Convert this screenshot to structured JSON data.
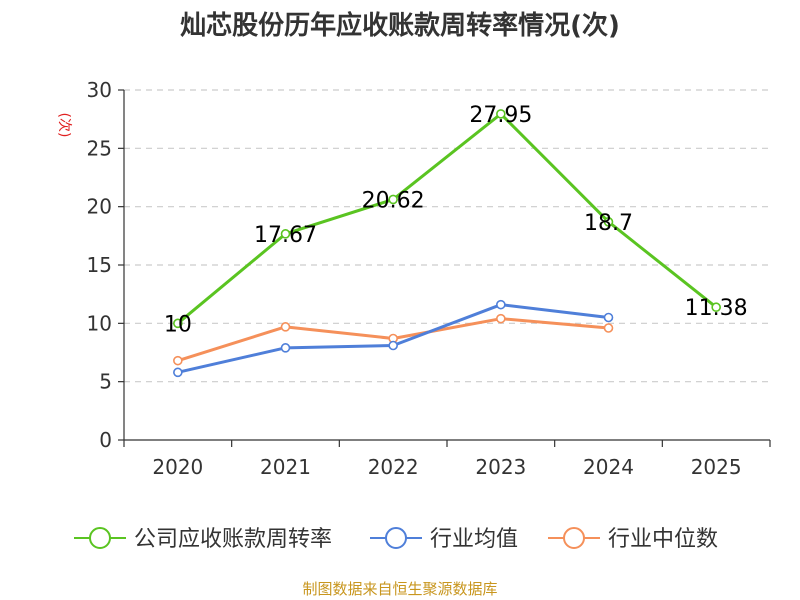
{
  "chart_data": {
    "type": "line",
    "title": "灿芯股份历年应收账款周转率情况(次)",
    "ylabel": "(次)",
    "xlabel": "",
    "categories": [
      "2020",
      "2021",
      "2022",
      "2023",
      "2024",
      "2025"
    ],
    "ylim": [
      0,
      30
    ],
    "yticks": [
      0,
      5,
      10,
      15,
      20,
      25,
      30
    ],
    "grid": true,
    "legend_position": "bottom",
    "series": [
      {
        "name": "公司应收账款周转率",
        "color": "#5ac421",
        "values": [
          10,
          17.67,
          20.62,
          27.95,
          18.7,
          11.38
        ],
        "labels": [
          "10",
          "17.67",
          "20.62",
          "27.95",
          "18.7",
          "11.38"
        ]
      },
      {
        "name": "行业均值",
        "color": "#4f7fd9",
        "values": [
          5.8,
          7.9,
          8.1,
          11.6,
          10.5,
          null
        ]
      },
      {
        "name": "行业中位数",
        "color": "#f5905a",
        "values": [
          6.8,
          9.7,
          8.7,
          10.4,
          9.6,
          null
        ]
      }
    ]
  },
  "source": "制图数据来自恒生聚源数据库"
}
